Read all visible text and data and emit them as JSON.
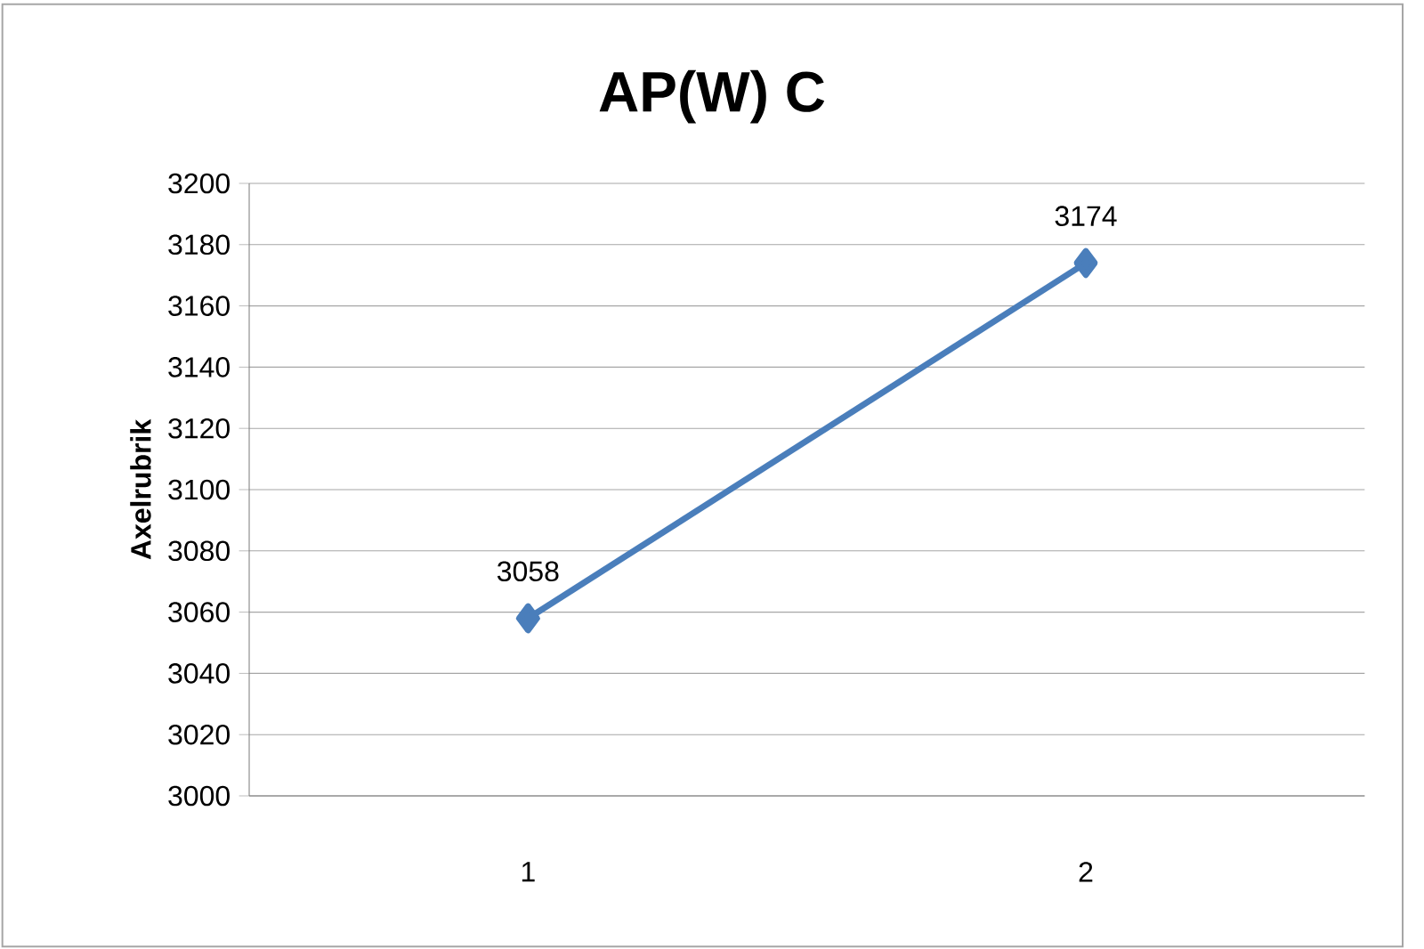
{
  "chart_data": {
    "type": "line",
    "title": "AP(W) C",
    "ylabel": "Axelrubrik",
    "categories": [
      "1",
      "2"
    ],
    "values": [
      3058,
      3174
    ],
    "color": "#4a7ebb",
    "ylim": [
      3000,
      3200
    ],
    "yticks": [
      3000,
      3020,
      3040,
      3060,
      3080,
      3100,
      3120,
      3140,
      3160,
      3180,
      3200
    ],
    "grid": "y",
    "marker": "diamond",
    "data_labels": true
  }
}
